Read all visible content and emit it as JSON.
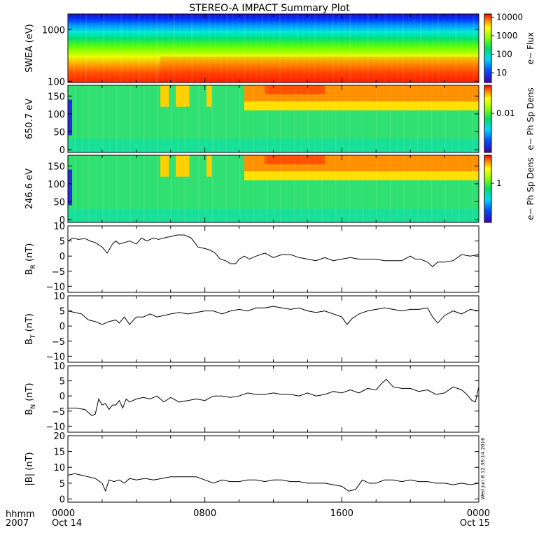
{
  "title": "STEREO-A IMPACT Summary Plot",
  "footer": {
    "left_top": "hhmm",
    "left_bottom": "2007",
    "timestamp": "Wed Jun  8 12:36:14 2016"
  },
  "chart_data": {
    "type": "multi-panel",
    "x_axis": {
      "tick_labels_top": [
        "0000",
        "0800",
        "1600",
        "0000"
      ],
      "tick_labels_bottom": [
        "Oct 14",
        "",
        "",
        "Oct 15"
      ],
      "tick_hours": [
        0,
        8,
        16,
        24
      ],
      "range_hours": [
        0,
        24
      ]
    },
    "panels": [
      {
        "type": "heatmap",
        "name": "swea",
        "ylabel": "SWEA (eV)",
        "yscale": "log",
        "ylim": [
          95,
          2000
        ],
        "y_ticks": [
          100,
          1000
        ],
        "y_tick_labels": [
          "100",
          "1000"
        ],
        "colorbar": {
          "label": "e− Flux",
          "scale": "log",
          "ticks": [
            "10",
            "100",
            "1000",
            "10000"
          ],
          "range": [
            3,
            15000
          ]
        }
      },
      {
        "type": "heatmap",
        "name": "pad-650",
        "ylabel": "650.7 eV",
        "ylim": [
          -8,
          180
        ],
        "y_ticks": [
          0,
          50,
          100,
          150
        ],
        "y_tick_labels": [
          "0",
          "50",
          "100",
          "150"
        ],
        "colorbar": {
          "label": "e− Ph Sp Dens",
          "scale": "log",
          "ticks": [
            "0.01"
          ]
        }
      },
      {
        "type": "heatmap",
        "name": "pad-246",
        "ylabel": "246.6 eV",
        "ylim": [
          -8,
          180
        ],
        "y_ticks": [
          0,
          50,
          100,
          150
        ],
        "y_tick_labels": [
          "0",
          "50",
          "100",
          "150"
        ],
        "colorbar": {
          "label": "e− Ph Sp Dens",
          "scale": "log",
          "ticks": [
            "1"
          ]
        }
      },
      {
        "type": "line",
        "name": "br",
        "ylabel_main": "B",
        "ylabel_sub": "R",
        "ylabel_unit": " (nT)",
        "ylim": [
          -12,
          10
        ],
        "y_ticks": [
          -10,
          -5,
          0,
          5,
          10
        ],
        "y_tick_labels": [
          "−10",
          "−5",
          "0",
          "5",
          "10"
        ],
        "series": [
          {
            "x": [
              0,
              0.3,
              0.6,
              1.0,
              1.3,
              1.6,
              2.0,
              2.3,
              2.6,
              2.8,
              3.0,
              3.3,
              3.6,
              4.0,
              4.3,
              4.6,
              5.0,
              5.3,
              5.6,
              6.0,
              6.4,
              6.8,
              7.2,
              7.6,
              8.0,
              8.3,
              8.6,
              8.9,
              9.2,
              9.5,
              9.8,
              10.0,
              10.3,
              10.6,
              11.0,
              11.5,
              12.0,
              12.5,
              13.0,
              13.5,
              14.0,
              14.5,
              15.0,
              15.5,
              16.0,
              16.5,
              17.0,
              17.5,
              18.0,
              18.5,
              19.0,
              19.5,
              20.0,
              20.3,
              20.6,
              21.0,
              21.3,
              21.6,
              22.0,
              22.5,
              23.0,
              23.5,
              24.0
            ],
            "y": [
              5,
              6,
              5.5,
              5.8,
              5,
              4.5,
              3,
              1,
              4,
              5,
              4,
              4.5,
              5,
              4,
              6,
              5,
              6,
              5.5,
              6,
              6.5,
              7,
              7,
              6,
              3,
              2.5,
              2,
              1,
              -1,
              -1.5,
              -2.5,
              -2.5,
              -1,
              0,
              -1,
              0,
              1,
              -0.5,
              0.5,
              0.5,
              -0.5,
              -1,
              -1.5,
              -0.5,
              -1.5,
              -1,
              -0.5,
              -1,
              -1,
              -1,
              -1.5,
              -1.5,
              -1.5,
              0,
              -1,
              -1,
              -2,
              -3.5,
              -2,
              -2,
              -1.5,
              0.5,
              0,
              0.5
            ]
          }
        ]
      },
      {
        "type": "line",
        "name": "bt",
        "ylabel_main": "B",
        "ylabel_sub": "T",
        "ylabel_unit": " (nT)",
        "ylim": [
          -12,
          10
        ],
        "y_ticks": [
          -10,
          -5,
          0,
          5,
          10
        ],
        "y_tick_labels": [
          "−10",
          "−5",
          "0",
          "5",
          "10"
        ],
        "series": [
          {
            "x": [
              0,
              0.4,
              0.8,
              1.2,
              1.6,
              2.0,
              2.4,
              2.8,
              3.0,
              3.3,
              3.6,
              4.0,
              4.4,
              4.8,
              5.2,
              5.6,
              6.0,
              6.5,
              7.0,
              7.5,
              8.0,
              8.5,
              9.0,
              9.5,
              10.0,
              10.5,
              11.0,
              11.5,
              12.0,
              12.5,
              13.0,
              13.5,
              14.0,
              14.5,
              15.0,
              15.5,
              16.0,
              16.3,
              16.6,
              17.0,
              17.5,
              18.0,
              18.5,
              19.0,
              19.5,
              20.0,
              20.5,
              21.0,
              21.3,
              21.6,
              22.0,
              22.5,
              23.0,
              23.5,
              24.0
            ],
            "y": [
              5,
              4.5,
              4,
              2,
              1.5,
              0.5,
              1.5,
              2,
              1,
              3,
              0.5,
              3,
              3,
              4,
              3,
              3.5,
              4,
              4.5,
              4,
              4.5,
              5,
              5,
              4,
              5,
              5.5,
              5,
              6,
              6,
              6.5,
              6,
              5.5,
              6,
              5,
              4.5,
              5,
              4,
              3,
              0.5,
              2.5,
              4,
              5,
              5.5,
              6,
              5.5,
              5,
              5.5,
              5.5,
              6,
              3,
              1,
              3.5,
              5,
              4,
              5.5,
              5
            ]
          }
        ]
      },
      {
        "type": "line",
        "name": "bn",
        "ylabel_main": "B",
        "ylabel_sub": "N",
        "ylabel_unit": " (nT)",
        "ylim": [
          -12,
          10
        ],
        "y_ticks": [
          -10,
          -5,
          0,
          5,
          10
        ],
        "y_tick_labels": [
          "−10",
          "−5",
          "0",
          "5",
          "10"
        ],
        "series": [
          {
            "x": [
              0,
              0.5,
              1.0,
              1.4,
              1.6,
              1.8,
              2.0,
              2.2,
              2.4,
              2.6,
              2.8,
              3.0,
              3.2,
              3.4,
              3.6,
              4.0,
              4.4,
              4.8,
              5.2,
              5.6,
              6.0,
              6.5,
              7.0,
              7.5,
              8.0,
              8.5,
              9.0,
              9.5,
              10.0,
              10.5,
              11.0,
              11.5,
              12.0,
              12.5,
              13.0,
              13.5,
              14.0,
              14.5,
              15.0,
              15.5,
              16.0,
              16.5,
              17.0,
              17.5,
              18.0,
              18.3,
              18.6,
              19.0,
              19.5,
              20.0,
              20.5,
              21.0,
              21.5,
              22.0,
              22.5,
              23.0,
              23.3,
              23.6,
              23.8,
              24.0
            ],
            "y": [
              -4,
              -4,
              -4.5,
              -6.5,
              -6,
              -1,
              -3,
              -2.5,
              -4.5,
              -3,
              -3,
              -1.5,
              -4,
              -1,
              -2,
              -1,
              -0.5,
              -1,
              0,
              -2,
              -0.5,
              -2,
              -1.5,
              -1,
              -1.5,
              0,
              0,
              -0.5,
              0,
              1,
              0.5,
              0.5,
              1,
              0.5,
              0.5,
              0,
              1,
              0,
              0.5,
              1.5,
              1,
              2,
              1,
              2.5,
              2,
              4,
              5.5,
              3,
              2.5,
              2.5,
              1.5,
              2,
              0.5,
              1,
              3,
              2,
              0.5,
              -1.5,
              -2,
              3
            ]
          }
        ]
      },
      {
        "type": "line",
        "name": "bmag",
        "ylabel_main": "|B|",
        "ylabel_sub": "",
        "ylabel_unit": " (nT)",
        "ylim": [
          -1,
          20
        ],
        "y_ticks": [
          0,
          5,
          10,
          15,
          20
        ],
        "y_tick_labels": [
          "0",
          "5",
          "10",
          "15",
          "20"
        ],
        "series": [
          {
            "x": [
              0,
              0.4,
              0.8,
              1.2,
              1.6,
              2.0,
              2.2,
              2.4,
              2.7,
              3.0,
              3.3,
              3.6,
              4.0,
              4.5,
              5.0,
              5.5,
              6.0,
              6.5,
              7.0,
              7.5,
              8.0,
              8.5,
              9.0,
              9.5,
              10.0,
              10.5,
              11.0,
              11.5,
              12.0,
              12.5,
              13.0,
              13.5,
              14.0,
              14.5,
              15.0,
              15.5,
              16.0,
              16.4,
              16.8,
              17.2,
              17.6,
              18.0,
              18.5,
              19.0,
              19.5,
              20.0,
              20.5,
              21.0,
              21.5,
              22.0,
              22.5,
              23.0,
              23.5,
              24.0
            ],
            "y": [
              7.5,
              8,
              7.5,
              7,
              6.5,
              5,
              2.5,
              6,
              5.5,
              6,
              5,
              6.5,
              6,
              6.5,
              6,
              6.5,
              7,
              7,
              7,
              7,
              6,
              5,
              6,
              5.5,
              5.5,
              6,
              6,
              5.5,
              6,
              6,
              5.5,
              5.5,
              5,
              5,
              5,
              4.5,
              4,
              2.5,
              3,
              6,
              5,
              5,
              6,
              6,
              5.5,
              6,
              5.5,
              5.5,
              5,
              5,
              4.5,
              5,
              4.5,
              5
            ]
          }
        ]
      }
    ]
  }
}
